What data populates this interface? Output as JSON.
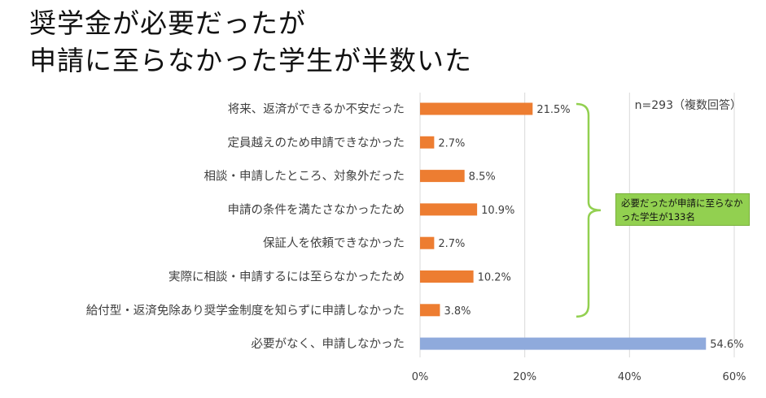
{
  "title": {
    "line1": "奨学金が必要だったが",
    "line2": "申請に至らなかった学生が半数いた"
  },
  "note": "n=293（複数回答）",
  "callout": {
    "text": "必要だったが申請に至らなかった学生が133名"
  },
  "colors": {
    "bar": "#ed7d31",
    "bar_highlight": "#8faadc",
    "brace": "#92d050",
    "callout_bg": "#92d050",
    "grid": "#d9d9d9"
  },
  "chart_data": {
    "type": "bar",
    "orientation": "horizontal",
    "title": "奨学金が必要だったが申請に至らなかった学生が半数いた",
    "categories": [
      "将来、返済ができるか不安だった",
      "定員越えのため申請できなかった",
      "相談・申請したところ、対象外だった",
      "申請の条件を満たさなかったため",
      "保証人を依頼できなかった",
      "実際に相談・申請するには至らなかったため",
      "給付型・返済免除あり奨学金制度を知らずに申請しなかった",
      "必要がなく、申請しなかった"
    ],
    "values": [
      21.5,
      2.7,
      8.5,
      10.9,
      2.7,
      10.2,
      3.8,
      54.6
    ],
    "value_labels": [
      "21.5%",
      "2.7%",
      "8.5%",
      "10.9%",
      "2.7%",
      "10.2%",
      "3.8%",
      "54.6%"
    ],
    "highlight_index": 7,
    "xlim": [
      0,
      60
    ],
    "xticks": [
      0,
      20,
      40,
      60
    ],
    "xtick_labels": [
      "0%",
      "20%",
      "40%",
      "60%"
    ],
    "xlabel": "",
    "ylabel": "",
    "grid": true,
    "bracket_range": [
      0,
      6
    ]
  }
}
